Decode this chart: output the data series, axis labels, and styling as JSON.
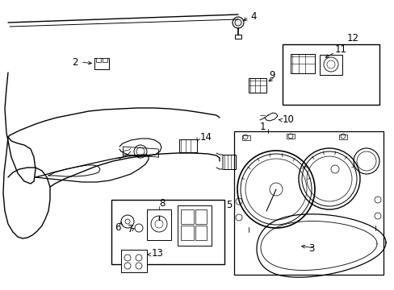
{
  "background_color": "#ffffff",
  "fig_width": 4.89,
  "fig_height": 3.6,
  "dpi": 100,
  "line_color": "#000000",
  "text_color": "#000000",
  "label_fontsize": 8.5
}
